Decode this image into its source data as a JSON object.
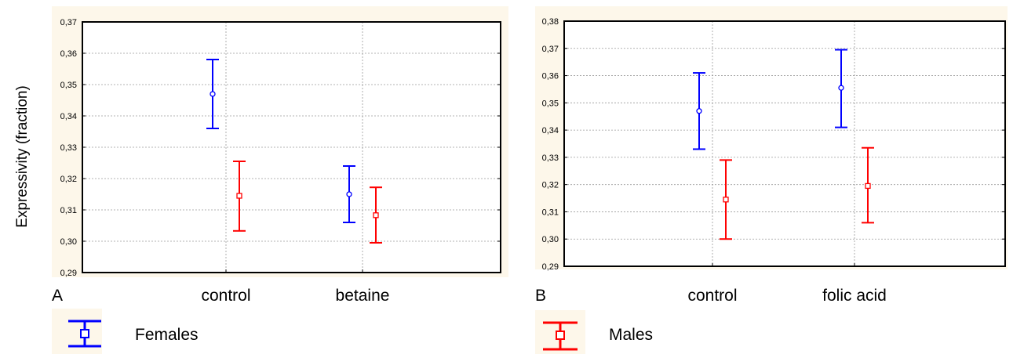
{
  "figure": {
    "ylabel": "Expressivity (fraction)",
    "legend": [
      {
        "label": "Females",
        "color": "#0000ff",
        "marker": "circle"
      },
      {
        "label": "Males",
        "color": "#ff0000",
        "marker": "square"
      }
    ]
  },
  "chart_data": [
    {
      "type": "scatter",
      "panel_label": "A",
      "categories": [
        "control",
        "betaine"
      ],
      "ylim": [
        0.29,
        0.37
      ],
      "yticks": [
        "0,29",
        "0,30",
        "0,31",
        "0,32",
        "0,33",
        "0,34",
        "0,35",
        "0,36",
        "0,37"
      ],
      "grid": true,
      "series": [
        {
          "name": "Females",
          "color": "#0000ff",
          "marker": "circle",
          "values": [
            0.347,
            0.315
          ],
          "lower": [
            0.336,
            0.306
          ],
          "upper": [
            0.358,
            0.324
          ]
        },
        {
          "name": "Males",
          "color": "#ff0000",
          "marker": "square",
          "values": [
            0.3145,
            0.3083
          ],
          "lower": [
            0.3033,
            0.2995
          ],
          "upper": [
            0.3255,
            0.3172
          ]
        }
      ]
    },
    {
      "type": "scatter",
      "panel_label": "B",
      "categories": [
        "control",
        "folic acid"
      ],
      "ylim": [
        0.29,
        0.38
      ],
      "yticks": [
        "0,29",
        "0,30",
        "0,31",
        "0,32",
        "0,33",
        "0,34",
        "0,35",
        "0,36",
        "0,37",
        "0,38"
      ],
      "grid": true,
      "series": [
        {
          "name": "Females",
          "color": "#0000ff",
          "marker": "circle",
          "values": [
            0.347,
            0.3555
          ],
          "lower": [
            0.333,
            0.341
          ],
          "upper": [
            0.361,
            0.3695
          ]
        },
        {
          "name": "Males",
          "color": "#ff0000",
          "marker": "square",
          "values": [
            0.3145,
            0.3195
          ],
          "lower": [
            0.3,
            0.306
          ],
          "upper": [
            0.329,
            0.3335
          ]
        }
      ]
    }
  ]
}
